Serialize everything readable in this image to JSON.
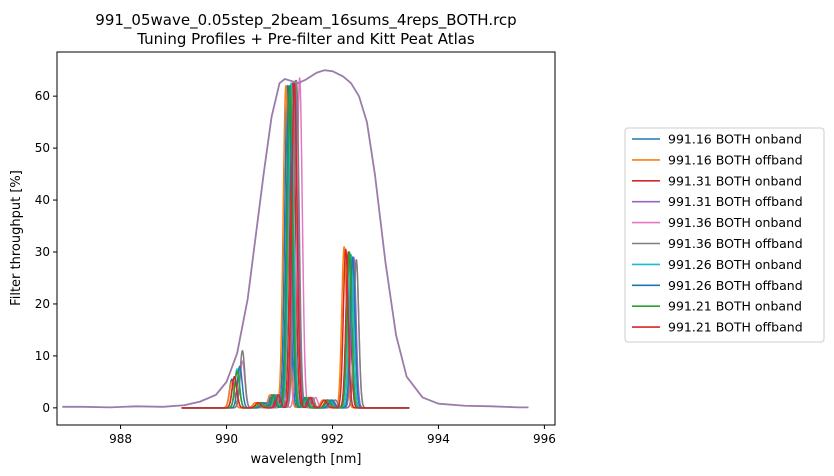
{
  "chart_data": {
    "type": "line",
    "title": "991_05wave_0.05step_2beam_16sums_4reps_BOTH.rcp",
    "subtitle": "Tuning Profiles + Pre-filter and Kitt Peat Atlas",
    "xlabel": "wavelength [nm]",
    "ylabel": "Filter throughput [%]",
    "xlim": [
      986.8,
      996.2
    ],
    "ylim": [
      -3.3,
      68.5
    ],
    "xticks": [
      988,
      990,
      992,
      994,
      996
    ],
    "yticks": [
      0,
      10,
      20,
      30,
      40,
      50,
      60
    ],
    "grid": false,
    "legend_position": "outside-right",
    "prefilter": {
      "name": "Pre-filter",
      "color": "#9b7bab",
      "x": [
        986.9,
        987.3,
        987.8,
        988.3,
        988.8,
        989.2,
        989.5,
        989.8,
        990.0,
        990.2,
        990.4,
        990.55,
        990.7,
        990.85,
        991.0,
        991.1,
        991.2,
        991.35,
        991.5,
        991.7,
        991.85,
        992.0,
        992.2,
        992.35,
        992.5,
        992.65,
        992.8,
        993.0,
        993.2,
        993.4,
        993.7,
        994.0,
        994.5,
        995.0,
        995.5,
        995.7
      ],
      "y": [
        0.2,
        0.2,
        0.1,
        0.3,
        0.2,
        0.5,
        1.2,
        2.5,
        5.0,
        10.5,
        21.0,
        33.0,
        45.0,
        56.0,
        62.5,
        63.3,
        63.0,
        62.5,
        63.2,
        64.5,
        65.0,
        64.8,
        63.8,
        62.5,
        60.0,
        55.0,
        45.0,
        28.0,
        14.0,
        6.0,
        2.0,
        0.8,
        0.4,
        0.3,
        0.1,
        0.1
      ]
    },
    "baseline": {
      "x_start": 989.15,
      "x_end": 993.45,
      "y": 0.0
    },
    "series": [
      {
        "name": "991.16 BOTH onband",
        "color": "#1f77b4",
        "side": {
          "center": 990.1,
          "peak": 5.5
        },
        "main": {
          "center": 991.15,
          "peak": 62.0
        },
        "red": {
          "center": 992.3,
          "peak": 29.5
        }
      },
      {
        "name": "991.16 BOTH offband",
        "color": "#ff7f0e",
        "side": {
          "center": 990.1,
          "peak": 5.0
        },
        "main": {
          "center": 991.12,
          "peak": 62.0
        },
        "red": {
          "center": 992.22,
          "peak": 31.0
        }
      },
      {
        "name": "991.31 BOTH onband",
        "color": "#d62728",
        "side": {
          "center": 990.15,
          "peak": 6.0
        },
        "main": {
          "center": 991.25,
          "peak": 62.5
        },
        "red": {
          "center": 992.3,
          "peak": 30.0
        }
      },
      {
        "name": "991.31 BOTH offband",
        "color": "#9467bd",
        "side": {
          "center": 990.2,
          "peak": 7.0
        },
        "main": {
          "center": 991.3,
          "peak": 63.0
        },
        "red": {
          "center": 992.4,
          "peak": 29.0
        }
      },
      {
        "name": "991.36 BOTH onband",
        "color": "#e377c2",
        "side": {
          "center": 990.3,
          "peak": 9.0
        },
        "main": {
          "center": 991.38,
          "peak": 63.5
        },
        "red": {
          "center": 992.45,
          "peak": 28.5
        }
      },
      {
        "name": "991.36 BOTH offband",
        "color": "#7f7f7f",
        "side": {
          "center": 990.3,
          "peak": 11.0
        },
        "main": {
          "center": 991.32,
          "peak": 63.0
        },
        "red": {
          "center": 992.45,
          "peak": 28.5
        }
      },
      {
        "name": "991.26 BOTH onband",
        "color": "#17becf",
        "side": {
          "center": 990.2,
          "peak": 7.5
        },
        "main": {
          "center": 991.22,
          "peak": 62.5
        },
        "red": {
          "center": 992.35,
          "peak": 29.5
        }
      },
      {
        "name": "991.26 BOTH offband",
        "color": "#1f77b4",
        "side": {
          "center": 990.25,
          "peak": 8.0
        },
        "main": {
          "center": 991.18,
          "peak": 62.0
        },
        "red": {
          "center": 992.38,
          "peak": 29.0
        }
      },
      {
        "name": "991.21 BOTH onband",
        "color": "#2ca02c",
        "side": {
          "center": 990.2,
          "peak": 7.0
        },
        "main": {
          "center": 991.2,
          "peak": 62.0
        },
        "red": {
          "center": 992.32,
          "peak": 30.0
        }
      },
      {
        "name": "991.21 BOTH offband",
        "color": "#d62728",
        "side": {
          "center": 990.15,
          "peak": 6.0
        },
        "main": {
          "center": 991.28,
          "peak": 62.5
        },
        "red": {
          "center": 992.25,
          "peak": 30.5
        }
      }
    ]
  }
}
